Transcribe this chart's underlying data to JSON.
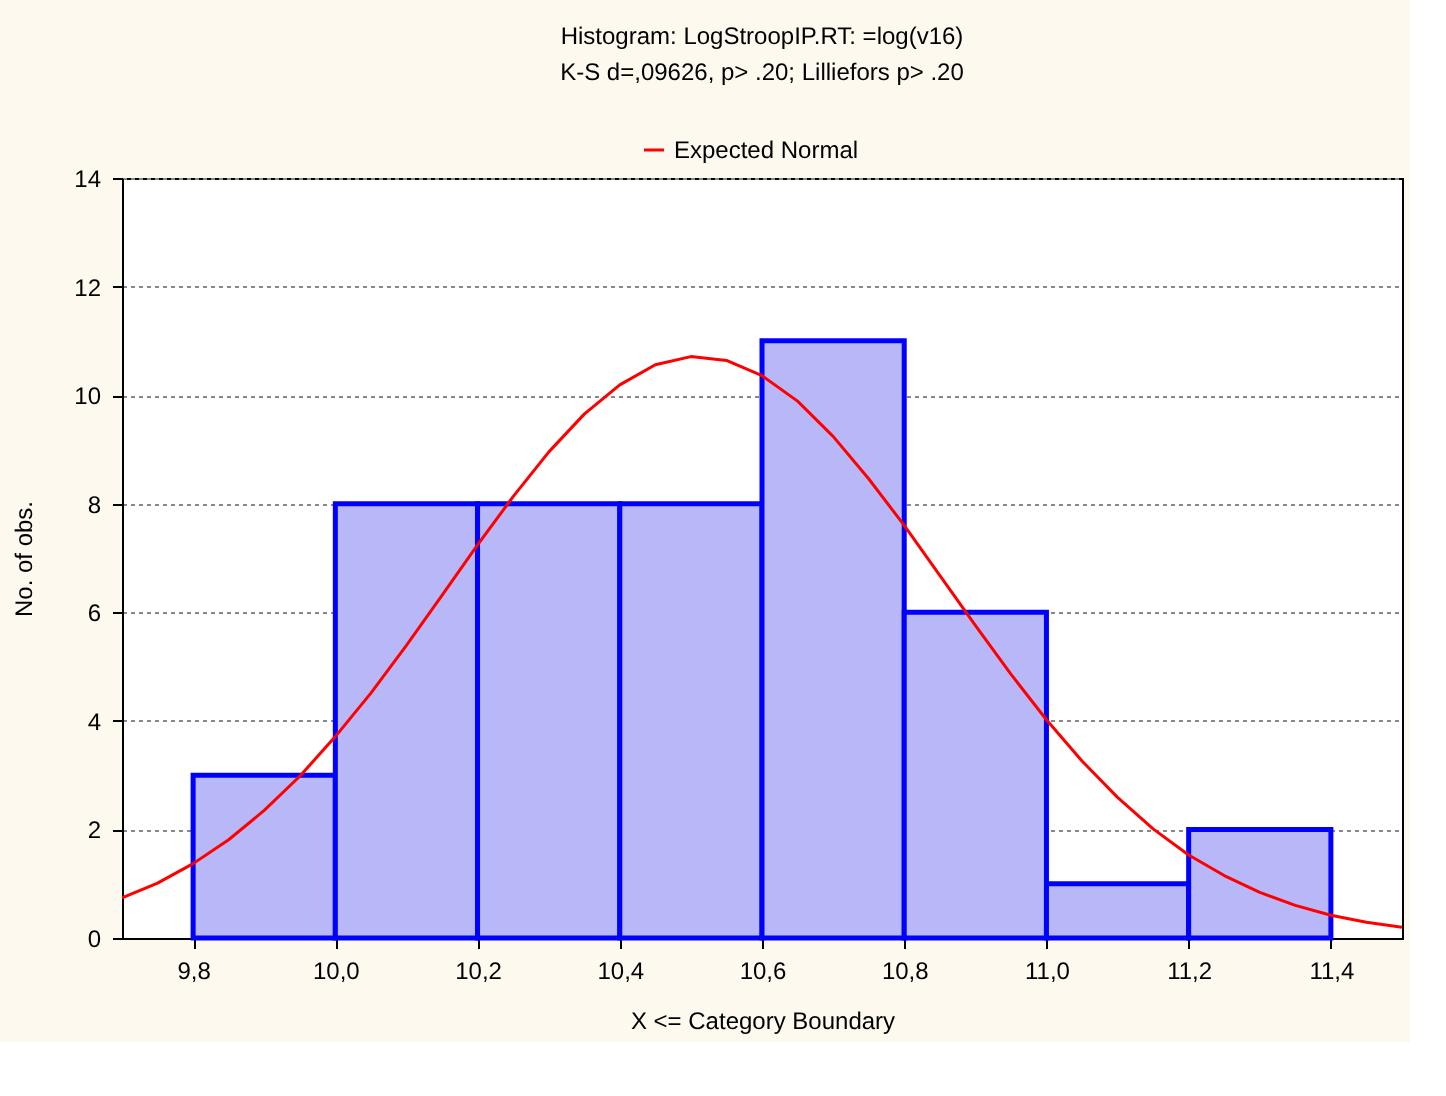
{
  "chart_data": {
    "type": "histogram",
    "title": "Histogram: LogStroopIP.RT: =log(v16)",
    "subtitle": "K-S d=,09626, p> .20; Lilliefors p> .20",
    "xlabel": "X <= Category Boundary",
    "ylabel": "No. of obs.",
    "bins": [
      9.8,
      10.0,
      10.2,
      10.4,
      10.6,
      10.8,
      11.0,
      11.2,
      11.4
    ],
    "values": [
      3,
      8,
      8,
      8,
      11,
      6,
      1,
      2
    ],
    "color": "#b8b8f8",
    "series": [
      {
        "name": "Expected Normal",
        "type": "line",
        "color": "#ff0000",
        "x": [
          9.7,
          9.75,
          9.8,
          9.85,
          9.9,
          9.95,
          10.0,
          10.05,
          10.1,
          10.15,
          10.2,
          10.25,
          10.3,
          10.35,
          10.4,
          10.45,
          10.5,
          10.55,
          10.6,
          10.65,
          10.7,
          10.75,
          10.8,
          10.85,
          10.9,
          10.95,
          11.0,
          11.05,
          11.1,
          11.15,
          11.2,
          11.25,
          11.3,
          11.35,
          11.4,
          11.45,
          11.5
        ],
        "values": [
          0.74,
          1.01,
          1.37,
          1.81,
          2.35,
          2.98,
          3.71,
          4.51,
          5.39,
          6.31,
          7.24,
          8.13,
          8.95,
          9.65,
          10.19,
          10.56,
          10.71,
          10.64,
          10.36,
          9.89,
          9.24,
          8.46,
          7.6,
          6.68,
          5.76,
          4.86,
          4.02,
          3.26,
          2.59,
          2.01,
          1.53,
          1.15,
          0.84,
          0.6,
          0.42,
          0.29,
          0.2
        ]
      }
    ],
    "xlim": [
      9.7,
      11.5
    ],
    "xticks": [
      {
        "value": 9.8,
        "label": "9,8"
      },
      {
        "value": 10.0,
        "label": "10,0"
      },
      {
        "value": 10.2,
        "label": "10,2"
      },
      {
        "value": 10.4,
        "label": "10,4"
      },
      {
        "value": 10.6,
        "label": "10,6"
      },
      {
        "value": 10.8,
        "label": "10,8"
      },
      {
        "value": 11.0,
        "label": "11,0"
      },
      {
        "value": 11.2,
        "label": "11,2"
      },
      {
        "value": 11.4,
        "label": "11,4"
      }
    ],
    "ylim": [
      0,
      14
    ],
    "yticks": [
      0,
      2,
      4,
      6,
      8,
      10,
      12,
      14
    ],
    "grid": "y",
    "legend": "top"
  }
}
